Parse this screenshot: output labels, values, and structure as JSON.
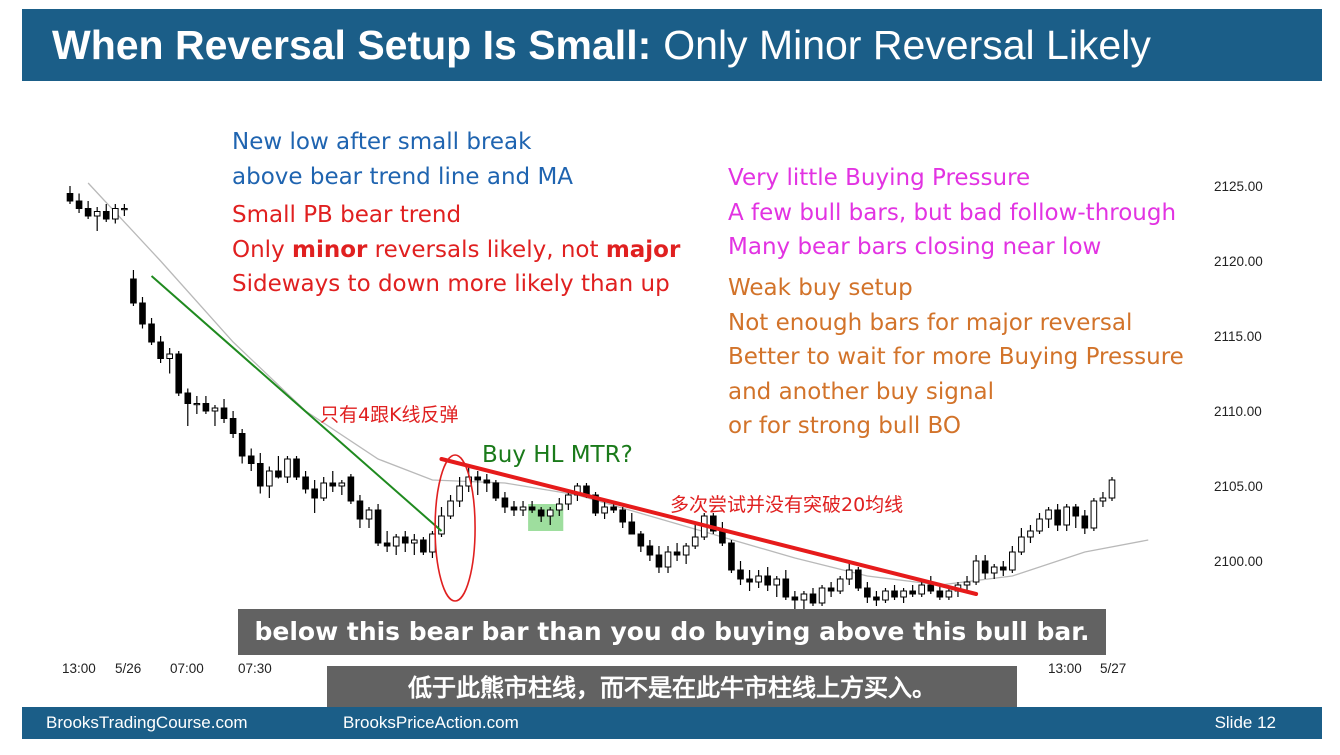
{
  "title": {
    "bold": "When Reversal Setup Is Small:",
    "light": "Only Minor Reversal Likely"
  },
  "notes": {
    "blue": [
      "New low after small break",
      "above bear trend line and MA"
    ],
    "red": [
      {
        "pre": "Small PB bear trend",
        "bold": "",
        "mid": "",
        "bold2": "",
        "post": ""
      },
      {
        "pre": "Only ",
        "bold": "minor",
        "mid": " reversals likely, not ",
        "bold2": "major",
        "post": ""
      },
      {
        "pre": "Sideways to down more likely than up",
        "bold": "",
        "mid": "",
        "bold2": "",
        "post": ""
      }
    ],
    "magenta": [
      "Very little Buying Pressure",
      "A few bull bars, but bad follow-through",
      "Many bear bars closing near low"
    ],
    "orange": [
      "Weak buy setup",
      "Not enough bars for major reversal",
      "Better to wait for more Buying Pressure",
      "and another buy signal",
      "or for strong bull BO"
    ]
  },
  "annotations": {
    "buy_hl": "Buy HL MTR?",
    "cn_four_bars": "只有4跟K线反弹",
    "cn_ma_fail": "多次尝试并没有突破20均线"
  },
  "subtitles": {
    "en": "below this bear bar than you do buying above this bull bar.",
    "cn": "低于此熊市柱线，而不是在此牛市柱线上方买入。"
  },
  "footer": {
    "left": "BrooksTradingCourse.com",
    "mid": "BrooksPriceAction.com",
    "right": "Slide  12"
  },
  "colors": {
    "title_bg": "#1b5e88",
    "blue": "#1f64b0",
    "red": "#e02020",
    "magenta": "#e233e2",
    "orange": "#d2732a",
    "green": "#1a7a1a"
  },
  "chart_data": {
    "type": "candlestick",
    "ylim": [
      2096,
      2128
    ],
    "y_ticks": [
      "2125.00",
      "2120.00",
      "2115.00",
      "2110.00",
      "2105.00",
      "2100.00"
    ],
    "x_ticks": [
      "13:00",
      "5/26",
      "07:00",
      "07:30",
      "13:00",
      "5/27"
    ],
    "bars": [
      {
        "o": 2124.5,
        "h": 2125.0,
        "l": 2123.8,
        "c": 2124.0
      },
      {
        "o": 2124.0,
        "h": 2124.5,
        "l": 2123.2,
        "c": 2123.5
      },
      {
        "o": 2123.5,
        "h": 2124.0,
        "l": 2122.8,
        "c": 2123.0
      },
      {
        "o": 2123.0,
        "h": 2123.6,
        "l": 2122.0,
        "c": 2123.3
      },
      {
        "o": 2123.3,
        "h": 2123.8,
        "l": 2122.6,
        "c": 2122.8
      },
      {
        "o": 2122.8,
        "h": 2123.8,
        "l": 2122.5,
        "c": 2123.5
      },
      {
        "o": 2123.5,
        "h": 2123.8,
        "l": 2123.0,
        "c": 2123.5
      },
      {
        "o": 2118.8,
        "h": 2119.4,
        "l": 2117.0,
        "c": 2117.2
      },
      {
        "o": 2117.2,
        "h": 2117.6,
        "l": 2115.5,
        "c": 2115.8
      },
      {
        "o": 2115.8,
        "h": 2116.2,
        "l": 2114.4,
        "c": 2114.6
      },
      {
        "o": 2114.6,
        "h": 2115.0,
        "l": 2113.2,
        "c": 2113.5
      },
      {
        "o": 2113.5,
        "h": 2114.2,
        "l": 2112.5,
        "c": 2113.8
      },
      {
        "o": 2113.8,
        "h": 2114.0,
        "l": 2111.0,
        "c": 2111.2
      },
      {
        "o": 2111.2,
        "h": 2111.5,
        "l": 2109.0,
        "c": 2110.5
      },
      {
        "o": 2110.5,
        "h": 2111.0,
        "l": 2109.8,
        "c": 2110.5
      },
      {
        "o": 2110.5,
        "h": 2111.0,
        "l": 2109.8,
        "c": 2110.0
      },
      {
        "o": 2110.0,
        "h": 2110.4,
        "l": 2109.0,
        "c": 2110.2
      },
      {
        "o": 2110.2,
        "h": 2110.8,
        "l": 2109.2,
        "c": 2109.5
      },
      {
        "o": 2109.5,
        "h": 2110.0,
        "l": 2108.2,
        "c": 2108.5
      },
      {
        "o": 2108.5,
        "h": 2108.8,
        "l": 2106.5,
        "c": 2107.0
      },
      {
        "o": 2107.0,
        "h": 2107.5,
        "l": 2106.0,
        "c": 2106.5
      },
      {
        "o": 2106.5,
        "h": 2107.2,
        "l": 2104.5,
        "c": 2105.0
      },
      {
        "o": 2105.0,
        "h": 2106.3,
        "l": 2104.2,
        "c": 2106.0
      },
      {
        "o": 2106.0,
        "h": 2107.0,
        "l": 2105.5,
        "c": 2105.6
      },
      {
        "o": 2105.6,
        "h": 2107.0,
        "l": 2105.2,
        "c": 2106.8
      },
      {
        "o": 2106.8,
        "h": 2107.0,
        "l": 2105.4,
        "c": 2105.6
      },
      {
        "o": 2105.6,
        "h": 2106.0,
        "l": 2104.5,
        "c": 2104.8
      },
      {
        "o": 2104.8,
        "h": 2105.4,
        "l": 2103.2,
        "c": 2104.2
      },
      {
        "o": 2104.2,
        "h": 2105.6,
        "l": 2104.0,
        "c": 2105.2
      },
      {
        "o": 2105.2,
        "h": 2106.0,
        "l": 2104.6,
        "c": 2105.0
      },
      {
        "o": 2105.0,
        "h": 2105.4,
        "l": 2104.4,
        "c": 2105.2
      },
      {
        "o": 2105.6,
        "h": 2105.8,
        "l": 2103.8,
        "c": 2104.0
      },
      {
        "o": 2104.0,
        "h": 2104.4,
        "l": 2102.2,
        "c": 2102.8
      },
      {
        "o": 2102.8,
        "h": 2103.6,
        "l": 2102.2,
        "c": 2103.4
      },
      {
        "o": 2103.4,
        "h": 2103.8,
        "l": 2101.0,
        "c": 2101.2
      },
      {
        "o": 2101.2,
        "h": 2102.0,
        "l": 2100.6,
        "c": 2101.0
      },
      {
        "o": 2101.0,
        "h": 2101.8,
        "l": 2100.4,
        "c": 2101.6
      },
      {
        "o": 2101.6,
        "h": 2102.0,
        "l": 2100.6,
        "c": 2101.2
      },
      {
        "o": 2101.2,
        "h": 2101.8,
        "l": 2100.4,
        "c": 2101.4
      },
      {
        "o": 2101.4,
        "h": 2101.6,
        "l": 2100.4,
        "c": 2100.6
      },
      {
        "o": 2100.6,
        "h": 2102.0,
        "l": 2100.2,
        "c": 2101.8
      },
      {
        "o": 2101.8,
        "h": 2103.6,
        "l": 2101.6,
        "c": 2103.0
      },
      {
        "o": 2103.0,
        "h": 2104.4,
        "l": 2102.8,
        "c": 2104.0
      },
      {
        "o": 2104.0,
        "h": 2105.6,
        "l": 2103.6,
        "c": 2105.0
      },
      {
        "o": 2105.0,
        "h": 2106.4,
        "l": 2104.6,
        "c": 2105.6
      },
      {
        "o": 2105.6,
        "h": 2106.0,
        "l": 2104.4,
        "c": 2105.4
      },
      {
        "o": 2105.4,
        "h": 2105.8,
        "l": 2104.6,
        "c": 2105.2
      },
      {
        "o": 2105.2,
        "h": 2105.4,
        "l": 2104.0,
        "c": 2104.2
      },
      {
        "o": 2104.2,
        "h": 2104.6,
        "l": 2103.2,
        "c": 2103.6
      },
      {
        "o": 2103.6,
        "h": 2104.0,
        "l": 2103.0,
        "c": 2103.4
      },
      {
        "o": 2103.4,
        "h": 2104.0,
        "l": 2103.0,
        "c": 2103.6
      },
      {
        "o": 2103.6,
        "h": 2104.0,
        "l": 2103.2,
        "c": 2103.4
      },
      {
        "o": 2103.4,
        "h": 2103.6,
        "l": 2102.6,
        "c": 2103.0
      },
      {
        "o": 2103.0,
        "h": 2103.6,
        "l": 2102.4,
        "c": 2103.4
      },
      {
        "o": 2103.4,
        "h": 2104.2,
        "l": 2103.0,
        "c": 2103.8
      },
      {
        "o": 2103.8,
        "h": 2104.6,
        "l": 2103.4,
        "c": 2104.4
      },
      {
        "o": 2104.4,
        "h": 2105.2,
        "l": 2104.0,
        "c": 2105.0
      },
      {
        "o": 2105.0,
        "h": 2105.2,
        "l": 2104.2,
        "c": 2104.4
      },
      {
        "o": 2104.4,
        "h": 2104.6,
        "l": 2103.0,
        "c": 2103.2
      },
      {
        "o": 2103.2,
        "h": 2104.0,
        "l": 2102.8,
        "c": 2103.6
      },
      {
        "o": 2103.6,
        "h": 2104.0,
        "l": 2103.2,
        "c": 2103.4
      },
      {
        "o": 2103.4,
        "h": 2103.6,
        "l": 2102.2,
        "c": 2102.6
      },
      {
        "o": 2102.6,
        "h": 2103.2,
        "l": 2101.8,
        "c": 2101.8
      },
      {
        "o": 2101.8,
        "h": 2102.0,
        "l": 2100.6,
        "c": 2101.0
      },
      {
        "o": 2101.0,
        "h": 2101.4,
        "l": 2100.0,
        "c": 2100.4
      },
      {
        "o": 2100.4,
        "h": 2101.0,
        "l": 2099.2,
        "c": 2099.6
      },
      {
        "o": 2099.6,
        "h": 2101.0,
        "l": 2099.2,
        "c": 2100.6
      },
      {
        "o": 2100.6,
        "h": 2101.2,
        "l": 2100.0,
        "c": 2100.4
      },
      {
        "o": 2100.4,
        "h": 2101.2,
        "l": 2099.8,
        "c": 2101.0
      },
      {
        "o": 2101.0,
        "h": 2102.4,
        "l": 2100.8,
        "c": 2101.6
      },
      {
        "o": 2101.6,
        "h": 2103.2,
        "l": 2101.4,
        "c": 2103.0
      },
      {
        "o": 2103.0,
        "h": 2103.2,
        "l": 2101.8,
        "c": 2102.0
      },
      {
        "o": 2102.0,
        "h": 2102.6,
        "l": 2101.0,
        "c": 2101.2
      },
      {
        "o": 2101.2,
        "h": 2101.4,
        "l": 2099.2,
        "c": 2099.4
      },
      {
        "o": 2099.4,
        "h": 2100.0,
        "l": 2098.4,
        "c": 2098.8
      },
      {
        "o": 2098.8,
        "h": 2099.4,
        "l": 2098.0,
        "c": 2098.6
      },
      {
        "o": 2098.6,
        "h": 2099.4,
        "l": 2098.2,
        "c": 2099.0
      },
      {
        "o": 2099.0,
        "h": 2099.6,
        "l": 2098.0,
        "c": 2098.4
      },
      {
        "o": 2098.4,
        "h": 2099.0,
        "l": 2097.6,
        "c": 2098.8
      },
      {
        "o": 2098.8,
        "h": 2099.4,
        "l": 2097.4,
        "c": 2097.6
      },
      {
        "o": 2097.6,
        "h": 2098.0,
        "l": 2096.8,
        "c": 2097.4
      },
      {
        "o": 2097.4,
        "h": 2098.0,
        "l": 2096.8,
        "c": 2097.8
      },
      {
        "o": 2097.8,
        "h": 2098.2,
        "l": 2097.0,
        "c": 2097.2
      },
      {
        "o": 2097.2,
        "h": 2098.4,
        "l": 2097.0,
        "c": 2098.2
      },
      {
        "o": 2098.2,
        "h": 2098.6,
        "l": 2097.6,
        "c": 2098.0
      },
      {
        "o": 2098.0,
        "h": 2099.0,
        "l": 2097.8,
        "c": 2098.8
      },
      {
        "o": 2098.8,
        "h": 2100.0,
        "l": 2098.4,
        "c": 2099.4
      },
      {
        "o": 2099.4,
        "h": 2099.6,
        "l": 2098.0,
        "c": 2098.2
      },
      {
        "o": 2098.2,
        "h": 2098.6,
        "l": 2097.2,
        "c": 2097.6
      },
      {
        "o": 2097.6,
        "h": 2098.0,
        "l": 2097.0,
        "c": 2097.4
      },
      {
        "o": 2097.4,
        "h": 2098.2,
        "l": 2097.2,
        "c": 2098.0
      },
      {
        "o": 2098.0,
        "h": 2098.4,
        "l": 2097.4,
        "c": 2097.6
      },
      {
        "o": 2097.6,
        "h": 2098.2,
        "l": 2097.2,
        "c": 2098.0
      },
      {
        "o": 2098.0,
        "h": 2098.4,
        "l": 2097.6,
        "c": 2097.8
      },
      {
        "o": 2097.8,
        "h": 2098.6,
        "l": 2097.6,
        "c": 2098.4
      },
      {
        "o": 2098.4,
        "h": 2099.0,
        "l": 2097.8,
        "c": 2098.0
      },
      {
        "o": 2098.0,
        "h": 2098.4,
        "l": 2097.4,
        "c": 2097.6
      },
      {
        "o": 2097.6,
        "h": 2098.2,
        "l": 2097.4,
        "c": 2098.0
      },
      {
        "o": 2098.0,
        "h": 2098.6,
        "l": 2097.6,
        "c": 2098.4
      },
      {
        "o": 2098.4,
        "h": 2099.0,
        "l": 2098.0,
        "c": 2098.6
      },
      {
        "o": 2098.6,
        "h": 2100.4,
        "l": 2098.4,
        "c": 2100.0
      },
      {
        "o": 2100.0,
        "h": 2100.4,
        "l": 2098.8,
        "c": 2099.2
      },
      {
        "o": 2099.2,
        "h": 2099.8,
        "l": 2098.8,
        "c": 2099.6
      },
      {
        "o": 2099.6,
        "h": 2100.0,
        "l": 2099.0,
        "c": 2099.4
      },
      {
        "o": 2099.4,
        "h": 2101.0,
        "l": 2099.2,
        "c": 2100.6
      },
      {
        "o": 2100.6,
        "h": 2102.2,
        "l": 2100.4,
        "c": 2101.6
      },
      {
        "o": 2101.6,
        "h": 2102.4,
        "l": 2101.2,
        "c": 2102.0
      },
      {
        "o": 2102.0,
        "h": 2103.2,
        "l": 2101.8,
        "c": 2102.8
      },
      {
        "o": 2102.8,
        "h": 2103.6,
        "l": 2102.2,
        "c": 2103.4
      },
      {
        "o": 2103.4,
        "h": 2103.8,
        "l": 2102.0,
        "c": 2102.4
      },
      {
        "o": 2102.4,
        "h": 2103.8,
        "l": 2102.0,
        "c": 2103.6
      },
      {
        "o": 2103.6,
        "h": 2103.8,
        "l": 2102.2,
        "c": 2103.0
      },
      {
        "o": 2103.0,
        "h": 2103.4,
        "l": 2101.8,
        "c": 2102.2
      },
      {
        "o": 2102.2,
        "h": 2104.2,
        "l": 2102.0,
        "c": 2104.0
      },
      {
        "o": 2104.0,
        "h": 2104.6,
        "l": 2103.6,
        "c": 2104.2
      },
      {
        "o": 2104.2,
        "h": 2105.6,
        "l": 2104.0,
        "c": 2105.4
      }
    ],
    "moving_average": [
      [
        2,
        2125.2
      ],
      [
        10,
        2120.0
      ],
      [
        18,
        2114.6
      ],
      [
        26,
        2110.0
      ],
      [
        34,
        2106.8
      ],
      [
        40,
        2105.4
      ],
      [
        48,
        2105.2
      ],
      [
        56,
        2104.4
      ],
      [
        64,
        2103.0
      ],
      [
        72,
        2101.6
      ],
      [
        80,
        2100.2
      ],
      [
        88,
        2099.0
      ],
      [
        96,
        2098.4
      ],
      [
        104,
        2099.0
      ],
      [
        112,
        2100.6
      ],
      [
        119,
        2101.4
      ]
    ],
    "bear_trend_line": [
      [
        9,
        2119.0
      ],
      [
        41,
        2102.0
      ]
    ],
    "resistance_line": [
      [
        41,
        2106.8
      ],
      [
        100,
        2097.8
      ]
    ],
    "highlight_bar_index": 52
  }
}
